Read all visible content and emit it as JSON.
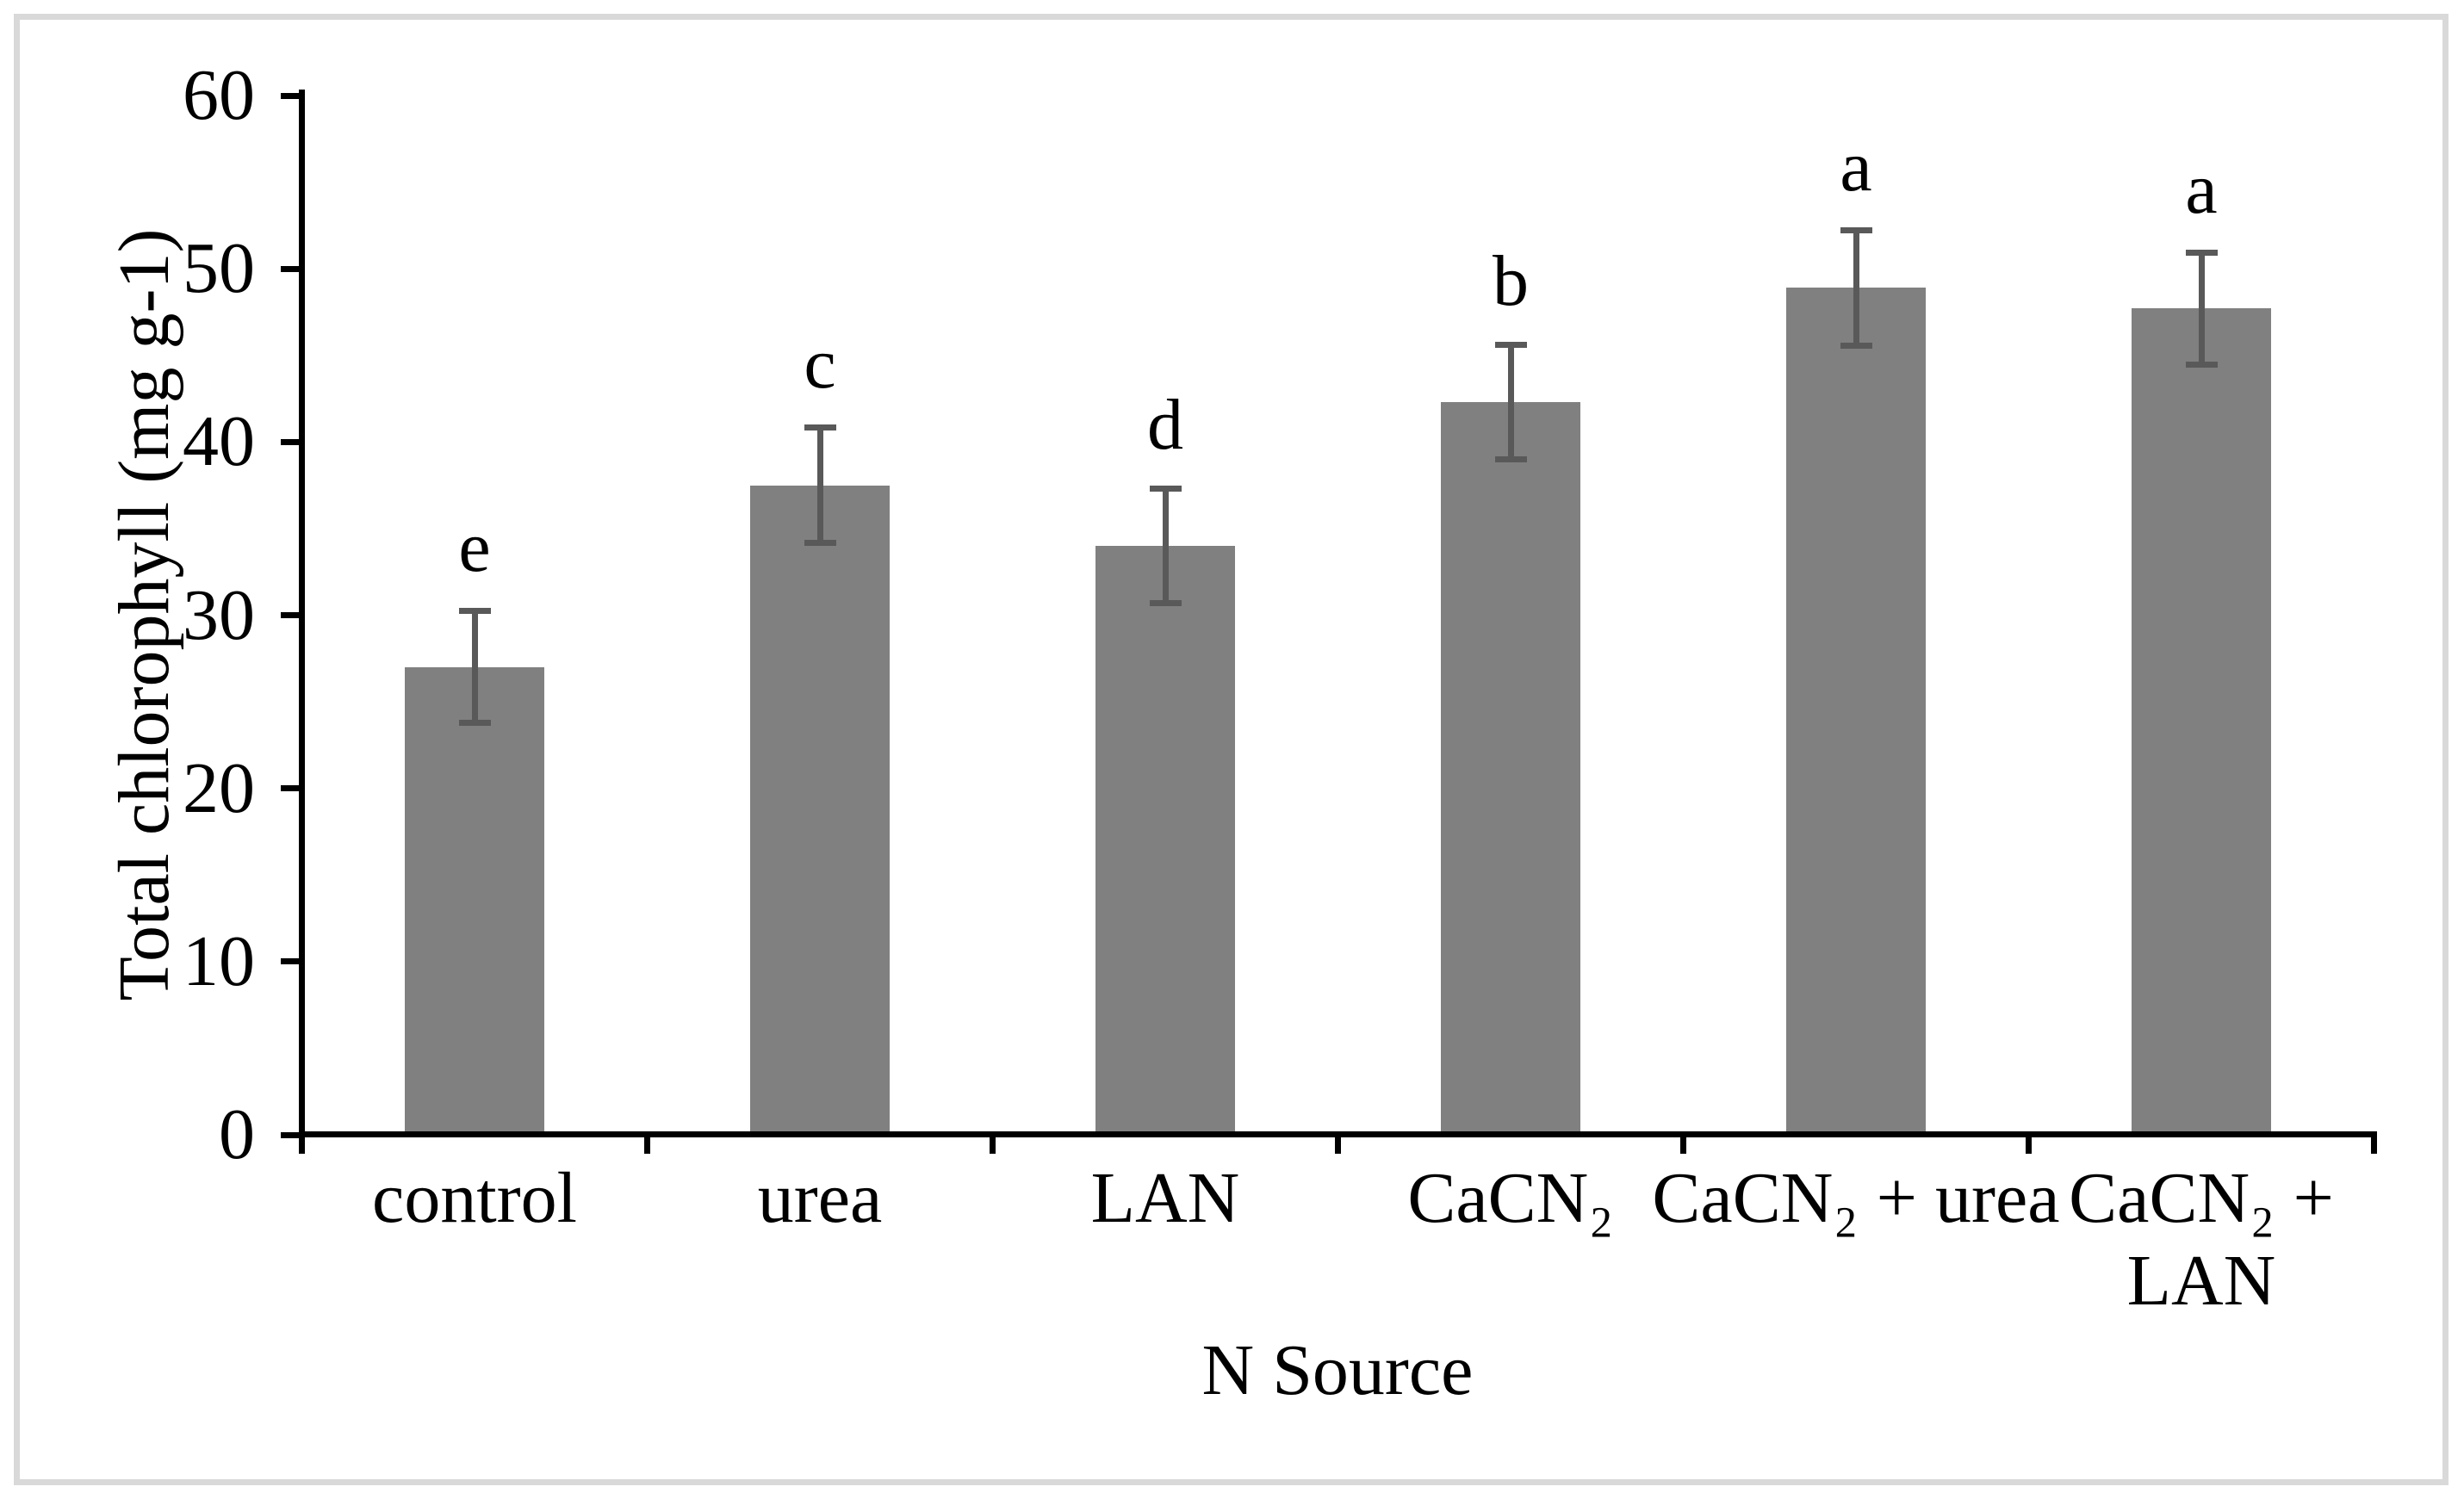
{
  "figure": {
    "background_color": "#ffffff",
    "border_color": "#d9d9d9"
  },
  "chart_data": {
    "type": "bar",
    "title": "",
    "xlabel": "N Source",
    "ylabel": "Total chlorophyll (mg g-1)",
    "categories": [
      "control",
      "urea",
      "LAN",
      "CaCN₂",
      "CaCN₂ + urea",
      "CaCN₂ +\nLAN"
    ],
    "values": [
      27.0,
      37.5,
      34.0,
      42.3,
      48.9,
      47.7
    ],
    "errors": [
      3.4,
      3.5,
      3.5,
      3.5,
      3.5,
      3.4
    ],
    "significance_letters": [
      "e",
      "c",
      "d",
      "b",
      "a",
      "a"
    ],
    "ylim": [
      0,
      60
    ],
    "ytick_step": 10,
    "ytick_labels": [
      "0",
      "10",
      "20",
      "30",
      "40",
      "50",
      "60"
    ],
    "grid": false,
    "legend": null,
    "bar_color": "#808080",
    "error_bar_color": "#595959",
    "axis_color": "#000000",
    "text_color": "#000000"
  }
}
